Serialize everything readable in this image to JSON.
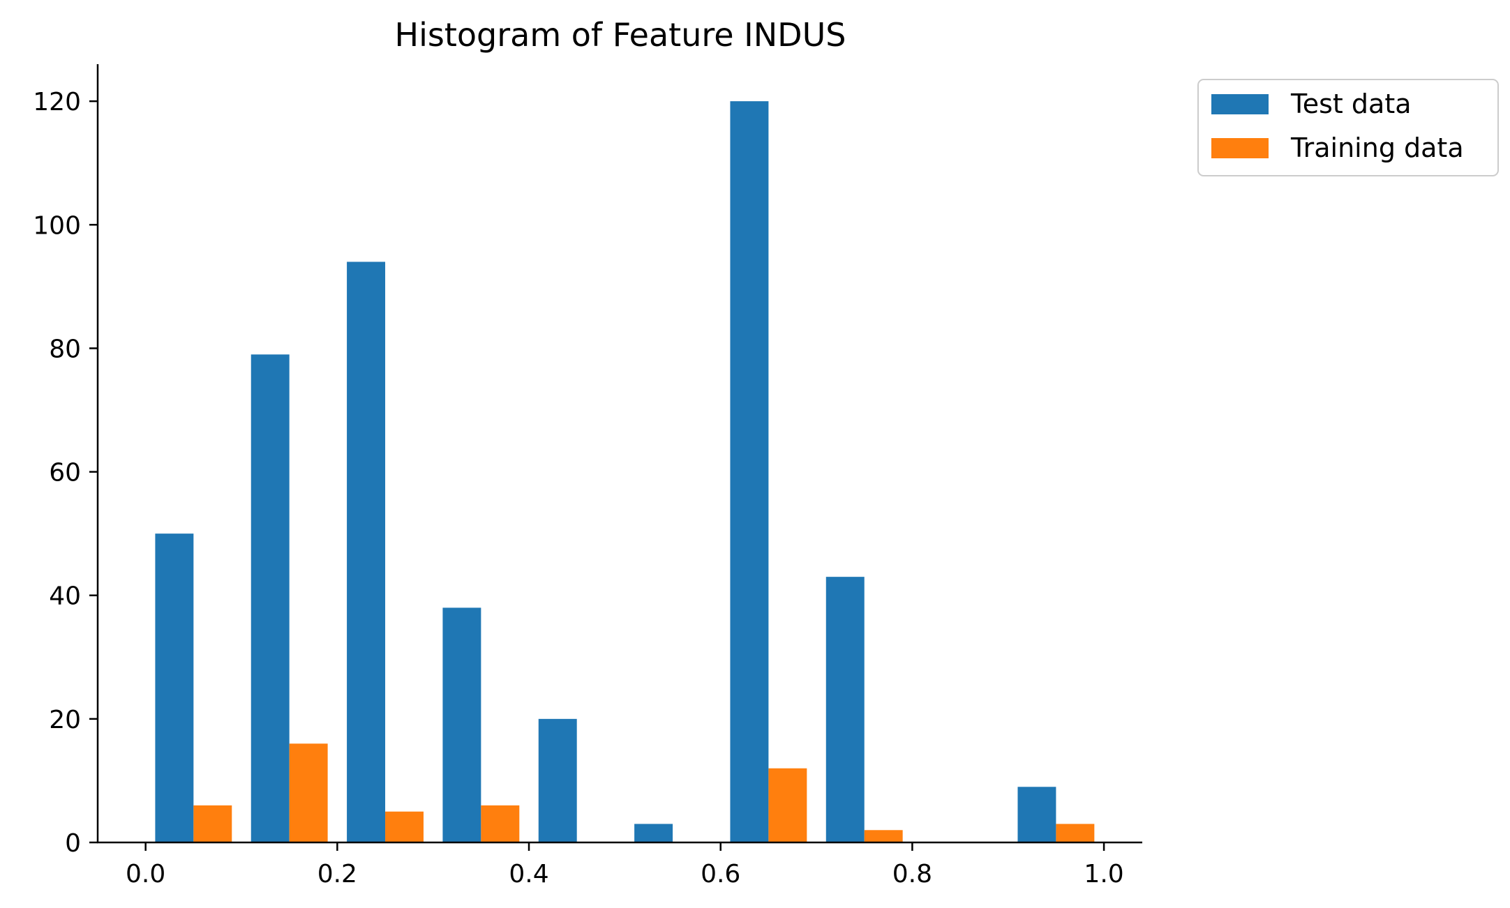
{
  "chart_data": {
    "type": "bar",
    "title": "Histogram of Feature INDUS",
    "xlabel": "",
    "ylabel": "",
    "xlim": [
      -0.05,
      1.04
    ],
    "ylim": [
      0,
      126
    ],
    "x_ticks": [
      "0.0",
      "0.2",
      "0.4",
      "0.6",
      "0.8",
      "1.0"
    ],
    "y_ticks": [
      "0",
      "20",
      "40",
      "60",
      "80",
      "100",
      "120"
    ],
    "bin_edges": [
      0.0,
      0.1,
      0.2,
      0.3,
      0.4,
      0.5,
      0.6,
      0.7,
      0.8,
      0.9,
      1.0
    ],
    "series": [
      {
        "name": "Test data",
        "color": "#1f77b4",
        "values": [
          50,
          79,
          94,
          38,
          20,
          3,
          120,
          43,
          0,
          9
        ]
      },
      {
        "name": "Training data",
        "color": "#ff7f0e",
        "values": [
          6,
          16,
          5,
          6,
          0,
          0,
          12,
          2,
          0,
          3
        ]
      }
    ],
    "grid": false,
    "legend_position": "outside top-right"
  }
}
